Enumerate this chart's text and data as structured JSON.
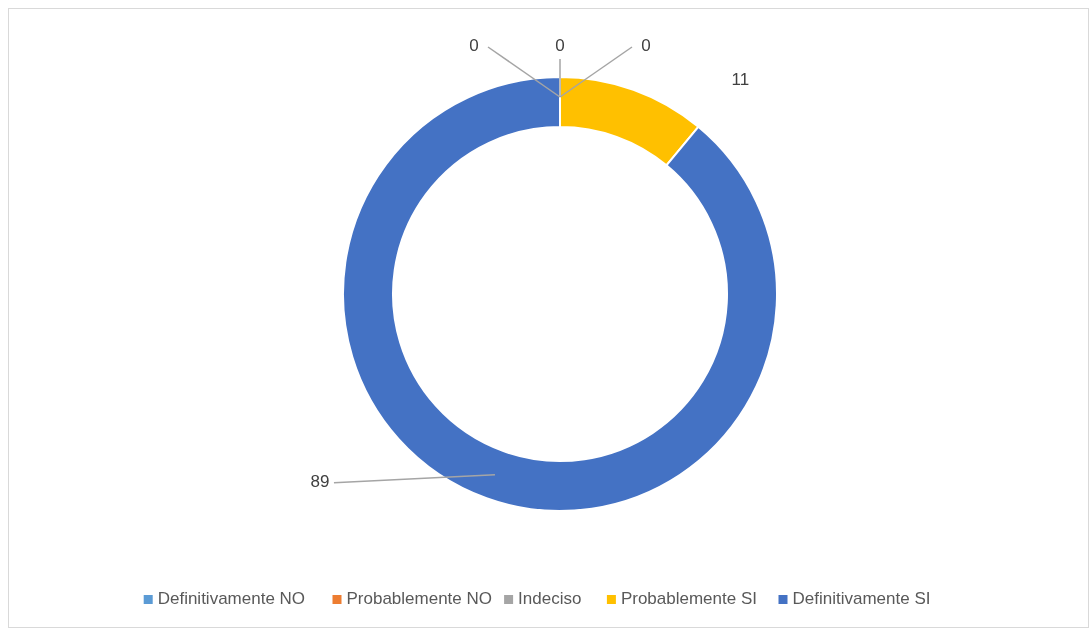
{
  "chart_data": {
    "type": "donut",
    "categories": [
      "Definitivamente NO",
      "Probablemente NO",
      "Indeciso",
      "Probablemente SI",
      "Definitivamente SI"
    ],
    "values": [
      0,
      0,
      0,
      11,
      89
    ],
    "value_labels": [
      "0",
      "0",
      "0",
      "11",
      "89"
    ],
    "colors": [
      "#5b9bd5",
      "#ed7d31",
      "#a5a5a5",
      "#ffc000",
      "#4472c4"
    ],
    "legend": "bottom"
  }
}
